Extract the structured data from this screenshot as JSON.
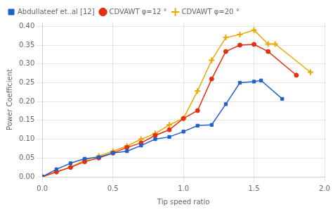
{
  "chart_data": {
    "type": "line",
    "xlabel": "Tip speed ratio",
    "ylabel": "Power Coefficient",
    "xlim": [
      0,
      2.0
    ],
    "ylim": [
      0,
      0.41
    ],
    "xticks": [
      {
        "value": 0,
        "label": "0.0"
      },
      0.5,
      {
        "value": 1.0,
        "label": "1.0"
      },
      1.5,
      {
        "value": 2.0,
        "label": "2.0"
      }
    ],
    "yticks": [
      {
        "value": 0,
        "label": "0.00"
      },
      0.05,
      {
        "value": 0.1,
        "label": "0.10"
      },
      0.15,
      {
        "value": 0.2,
        "label": "0.20"
      },
      0.25,
      {
        "value": 0.3,
        "label": "0.30"
      },
      0.35,
      {
        "value": 0.4,
        "label": "0.40"
      }
    ],
    "grid": true,
    "legend": "upper left",
    "series": [
      {
        "name": "Abdullateef et..al [12]",
        "color": "#2060cc",
        "marker": "square",
        "x": [
          0.0,
          0.1,
          0.2,
          0.3,
          0.4,
          0.5,
          0.6,
          0.7,
          0.8,
          0.9,
          1.0,
          1.1,
          1.2,
          1.3,
          1.4,
          1.5,
          1.55,
          1.7
        ],
        "values": [
          0.0,
          0.02,
          0.036,
          0.048,
          0.052,
          0.063,
          0.068,
          0.083,
          0.1,
          0.106,
          0.12,
          0.136,
          0.138,
          0.193,
          0.25,
          0.253,
          0.256,
          0.207
        ]
      },
      {
        "name": "CDVAWT φ=12 °",
        "color": "#e03010",
        "marker": "circle",
        "x": [
          0.0,
          0.1,
          0.2,
          0.3,
          0.4,
          0.5,
          0.6,
          0.7,
          0.8,
          0.9,
          1.0,
          1.1,
          1.2,
          1.3,
          1.4,
          1.5,
          1.6,
          1.8
        ],
        "values": [
          0.0,
          0.013,
          0.025,
          0.04,
          0.05,
          0.063,
          0.078,
          0.09,
          0.11,
          0.125,
          0.155,
          0.176,
          0.26,
          0.333,
          0.35,
          0.352,
          0.333,
          0.27
        ]
      },
      {
        "name": "CDVAWT φ=20 °",
        "color": "#e8a800",
        "marker": "plus",
        "x": [
          0.0,
          0.1,
          0.2,
          0.3,
          0.4,
          0.5,
          0.6,
          0.7,
          0.8,
          0.9,
          1.0,
          1.1,
          1.2,
          1.3,
          1.4,
          1.5,
          1.6,
          1.65,
          1.9
        ],
        "values": [
          0.0,
          0.013,
          0.026,
          0.044,
          0.055,
          0.068,
          0.082,
          0.1,
          0.115,
          0.138,
          0.155,
          0.228,
          0.31,
          0.37,
          0.378,
          0.39,
          0.353,
          0.353,
          0.278
        ]
      }
    ]
  }
}
